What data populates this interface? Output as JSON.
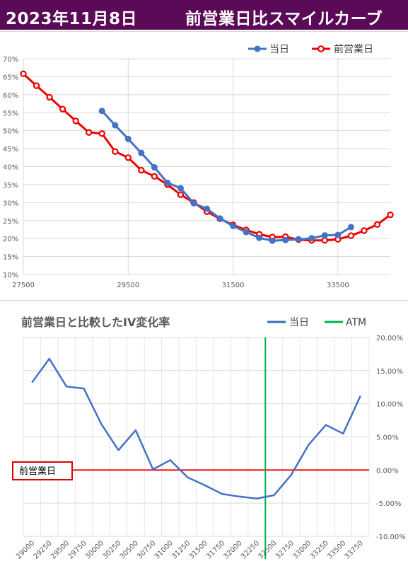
{
  "header": {
    "date": "2023年11月8日",
    "title": "前営業日比スマイルカーブ",
    "background": "#5a0a56"
  },
  "chart_data": [
    {
      "type": "line",
      "title": "",
      "xlabel": "",
      "ylabel": "",
      "xlim": [
        27500,
        34500
      ],
      "ylim": [
        10,
        70
      ],
      "x_ticks": [
        "27500",
        "29500",
        "31500",
        "33500"
      ],
      "y_ticks": [
        "10%",
        "15%",
        "20%",
        "25%",
        "30%",
        "35%",
        "40%",
        "45%",
        "50%",
        "55%",
        "60%",
        "65%",
        "70%"
      ],
      "grid": true,
      "legend_position": "top-right",
      "series": [
        {
          "name": "当日",
          "color": "#4472c4",
          "x": [
            29000,
            29250,
            29500,
            29750,
            30000,
            30250,
            30500,
            30750,
            31000,
            31250,
            31500,
            31750,
            32000,
            32250,
            32500,
            32750,
            33000,
            33250,
            33500,
            33750
          ],
          "y": [
            55.5,
            51.5,
            47.7,
            43.8,
            39.8,
            35.5,
            34.0,
            29.8,
            28.3,
            25.6,
            23.5,
            21.8,
            20.2,
            19.4,
            19.6,
            19.8,
            20.1,
            20.9,
            21.0,
            23.2
          ]
        },
        {
          "name": "前営業日",
          "color": "#ee0000",
          "x": [
            27500,
            27750,
            28000,
            28250,
            28500,
            28750,
            29000,
            29250,
            29500,
            29750,
            30000,
            30250,
            30500,
            30750,
            31000,
            31250,
            31500,
            31750,
            32000,
            32250,
            32500,
            32750,
            33000,
            33250,
            33500,
            33750,
            34000,
            34250,
            34500
          ],
          "y": [
            65.8,
            62.5,
            59.3,
            56.0,
            52.7,
            49.5,
            49.2,
            44.2,
            42.5,
            39.0,
            37.3,
            35.0,
            32.2,
            30.0,
            27.5,
            25.5,
            23.8,
            22.4,
            21.2,
            20.4,
            20.5,
            19.7,
            19.5,
            19.5,
            19.8,
            20.8,
            22.2,
            23.9,
            26.6
          ]
        }
      ]
    },
    {
      "type": "line",
      "title": "前営業日と比較したIV変化率",
      "xlabel": "",
      "ylabel": "",
      "categories": [
        "29000",
        "29250",
        "29500",
        "29750",
        "30000",
        "30250",
        "30500",
        "30750",
        "31000",
        "31250",
        "31500",
        "31750",
        "32000",
        "32250",
        "32500",
        "32750",
        "33000",
        "33250",
        "33500",
        "33750"
      ],
      "ylim": [
        -10,
        20
      ],
      "y_ticks": [
        "20.00%",
        "15.00%",
        "10.00%",
        "5.00%",
        "0.00%",
        "-5.00%",
        "-10.00%"
      ],
      "grid": true,
      "legend_position": "top-right",
      "series": [
        {
          "name": "当日",
          "color": "#4472c4",
          "values": [
            13.2,
            16.8,
            12.6,
            12.3,
            7.0,
            3.0,
            6.0,
            0.1,
            1.5,
            -1.1,
            -2.3,
            -3.6,
            -4.0,
            -4.3,
            -3.8,
            -0.7,
            3.8,
            6.8,
            5.5,
            11.2
          ]
        },
        {
          "name": "ATM",
          "color": "#00b050",
          "x": 32375
        }
      ],
      "reference_line": {
        "label": "前営業日",
        "value": 0,
        "color": "#ee0000"
      }
    }
  ]
}
